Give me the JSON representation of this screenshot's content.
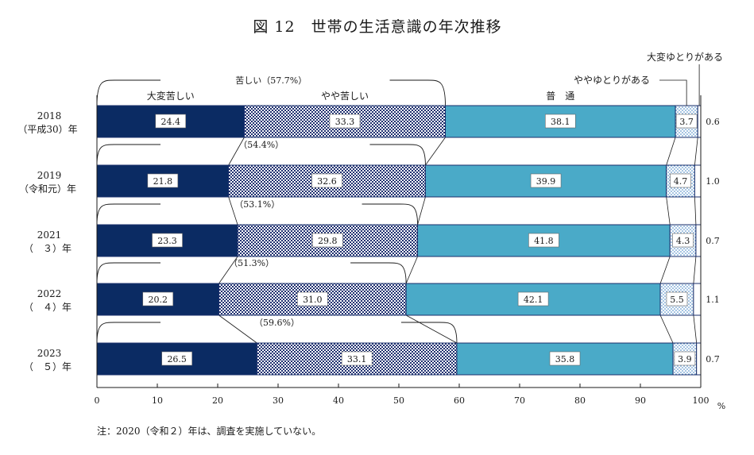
{
  "chart_data": {
    "type": "bar",
    "orientation": "horizontal",
    "stacked": true,
    "title": "図 12　世帯の生活意識の年次推移",
    "categories": [
      {
        "year": "2018",
        "era": "（平成30）年"
      },
      {
        "year": "2019",
        "era": "（令和元）年"
      },
      {
        "year": "2021",
        "era": "（　３）年"
      },
      {
        "year": "2022",
        "era": "（　４）年"
      },
      {
        "year": "2023",
        "era": "（　５）年"
      }
    ],
    "series": [
      {
        "name": "大変苦しい",
        "color": "#0b2b63",
        "pattern": "solid-navy",
        "values": [
          24.4,
          21.8,
          23.3,
          20.2,
          26.5
        ],
        "labels": [
          "24.4",
          "21.8",
          "23.3",
          "20.2",
          "26.5"
        ]
      },
      {
        "name": "やや苦しい",
        "color": "#2b3f80",
        "pattern": "checker-navy",
        "values": [
          33.3,
          32.6,
          29.8,
          31.0,
          33.1
        ],
        "labels": [
          "33.3",
          "32.6",
          "29.8",
          "31.0",
          "33.1"
        ]
      },
      {
        "name": "普　通",
        "color": "#4aaac8",
        "pattern": "solid-blue",
        "values": [
          38.1,
          39.9,
          41.8,
          42.1,
          35.8
        ],
        "labels": [
          "38.1",
          "39.9",
          "41.8",
          "42.1",
          "35.8"
        ]
      },
      {
        "name": "ややゆとりがある",
        "color": "#4a8fd0",
        "pattern": "dots-blue",
        "values": [
          3.7,
          4.7,
          4.3,
          5.5,
          3.9
        ],
        "labels": [
          "3.7",
          "4.7",
          "4.3",
          "5.5",
          "3.9"
        ]
      },
      {
        "name": "大変ゆとりがある",
        "color": "#ffffff",
        "pattern": "white",
        "values": [
          0.6,
          1.0,
          0.7,
          1.1,
          0.7
        ],
        "labels": [
          "0.6",
          "1.0",
          "0.7",
          "1.1",
          "0.7"
        ]
      }
    ],
    "hard_total_labels": [
      "苦しい（57.7%）",
      "（54.4%）",
      "（53.1%）",
      "（51.3%）",
      "（59.6%）"
    ],
    "xlim": [
      0,
      100
    ],
    "xticks": [
      "0",
      "10",
      "20",
      "30",
      "40",
      "50",
      "60",
      "70",
      "80",
      "90",
      "100"
    ],
    "x_unit": "%",
    "grid": false,
    "legend": "labels above top bar"
  },
  "note": "注：2020（令和２）年は、調査を実施していない。"
}
